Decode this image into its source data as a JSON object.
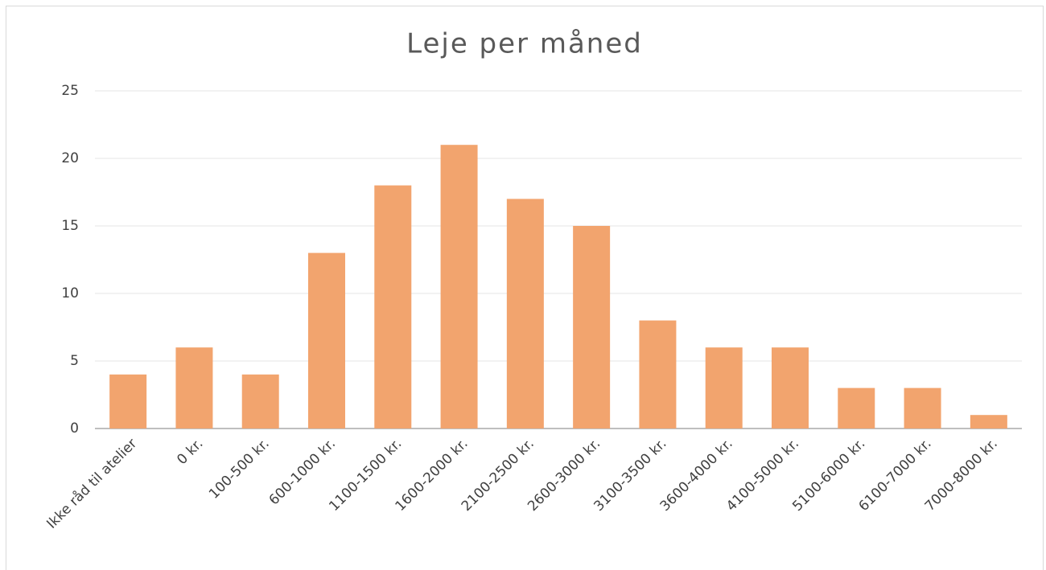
{
  "chart_data": {
    "type": "bar",
    "title": "Leje per måned",
    "categories": [
      "Ikke råd til atelier",
      "0 kr.",
      "100-500 kr.",
      "600-1000 kr.",
      "1100-1500 kr.",
      "1600-2000 kr.",
      "2100-2500 kr.",
      "2600-3000 kr.",
      "3100-3500 kr.",
      "3600-4000 kr.",
      "4100-5000 kr.",
      "5100-6000 kr.",
      "6100-7000 kr.",
      "7000-8000 kr."
    ],
    "values": [
      4,
      6,
      4,
      13,
      18,
      21,
      17,
      15,
      8,
      6,
      6,
      3,
      3,
      1
    ],
    "color": "#f2a46e",
    "ylim": [
      0,
      25
    ],
    "yticks": [
      0,
      5,
      10,
      15,
      20,
      25
    ],
    "grid": true
  }
}
